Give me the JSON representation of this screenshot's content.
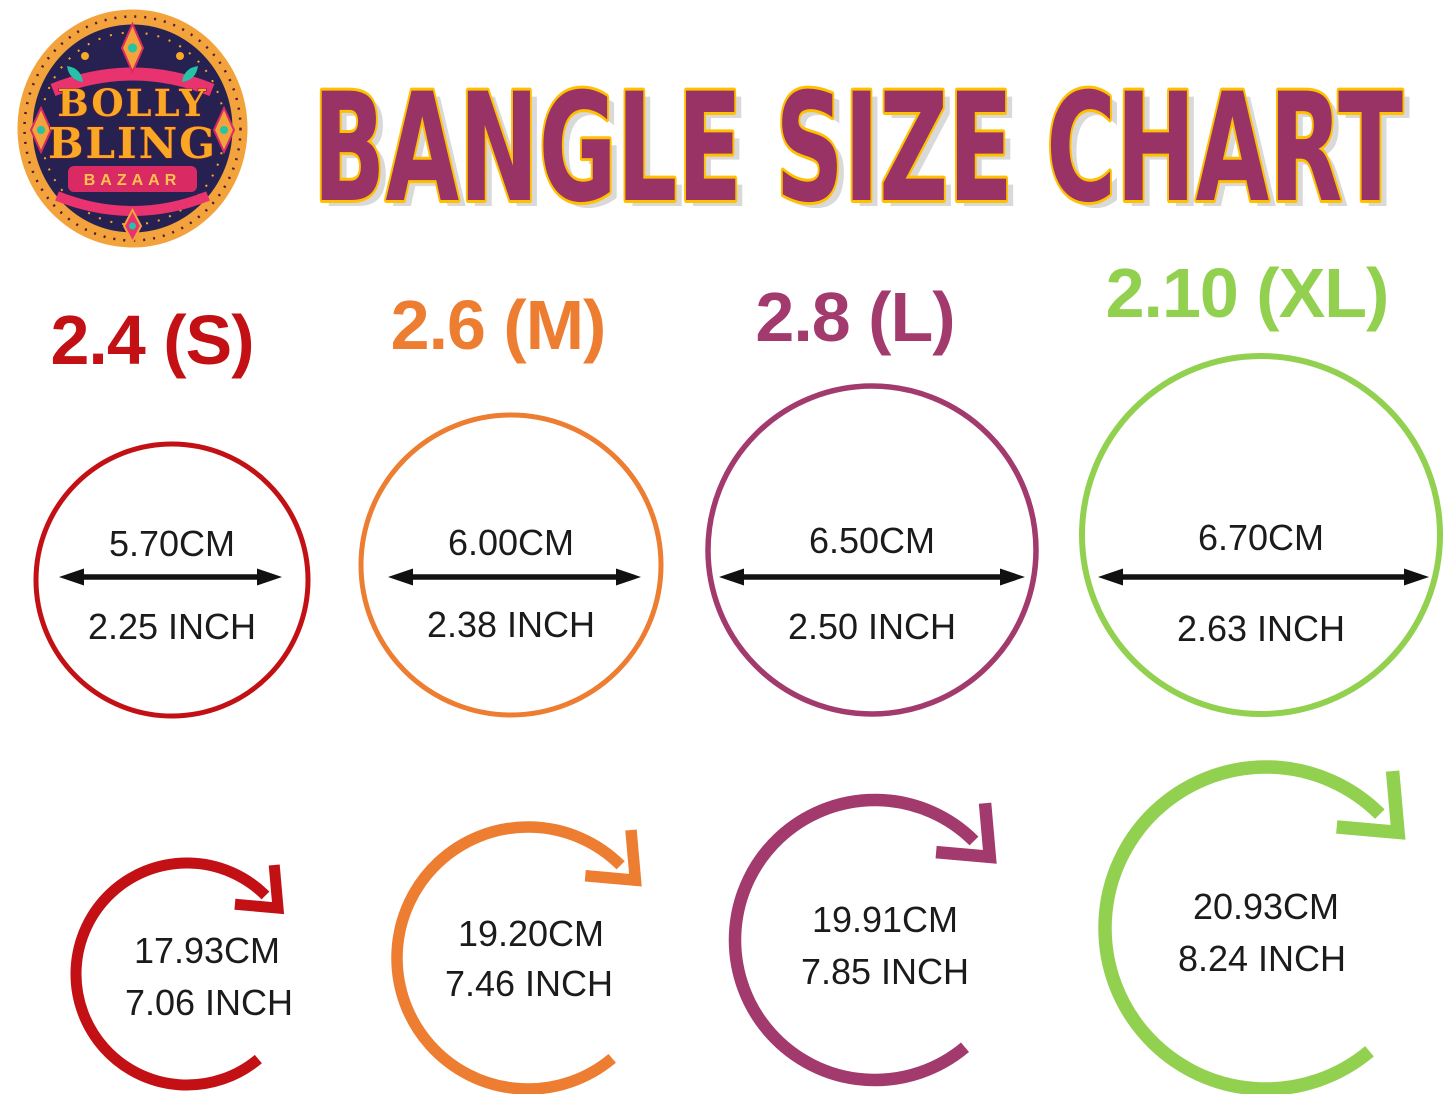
{
  "logo": {
    "line1": "BOLLY",
    "line2": "BLING",
    "line3": "BAZAAR"
  },
  "title": {
    "text": "BANGLE SIZE CHART",
    "fill": "#993366",
    "outline": "#FFC000",
    "shadow": "#D9D9D9"
  },
  "text_color": "#1b1b1b",
  "arrow_color": "#111111",
  "sizes": [
    {
      "label": "2.4 (S)",
      "color": "#C31014",
      "diameter": {
        "cm": "5.70CM",
        "inch": "2.25 INCH"
      },
      "circumference": {
        "cm": "17.93CM",
        "inch": "7.06 INCH"
      }
    },
    {
      "label": "2.6 (M)",
      "color": "#ED7D31",
      "diameter": {
        "cm": "6.00CM",
        "inch": "2.38 INCH"
      },
      "circumference": {
        "cm": "19.20CM",
        "inch": "7.46 INCH"
      }
    },
    {
      "label": "2.8 (L)",
      "color": "#A33A6E",
      "diameter": {
        "cm": "6.50CM",
        "inch": "2.50 INCH"
      },
      "circumference": {
        "cm": "19.91CM",
        "inch": "7.85 INCH"
      }
    },
    {
      "label": "2.10 (XL)",
      "color": "#92D050",
      "diameter": {
        "cm": "6.70CM",
        "inch": "2.63 INCH"
      },
      "circumference": {
        "cm": "20.93CM",
        "inch": "8.24 INCH"
      }
    }
  ]
}
